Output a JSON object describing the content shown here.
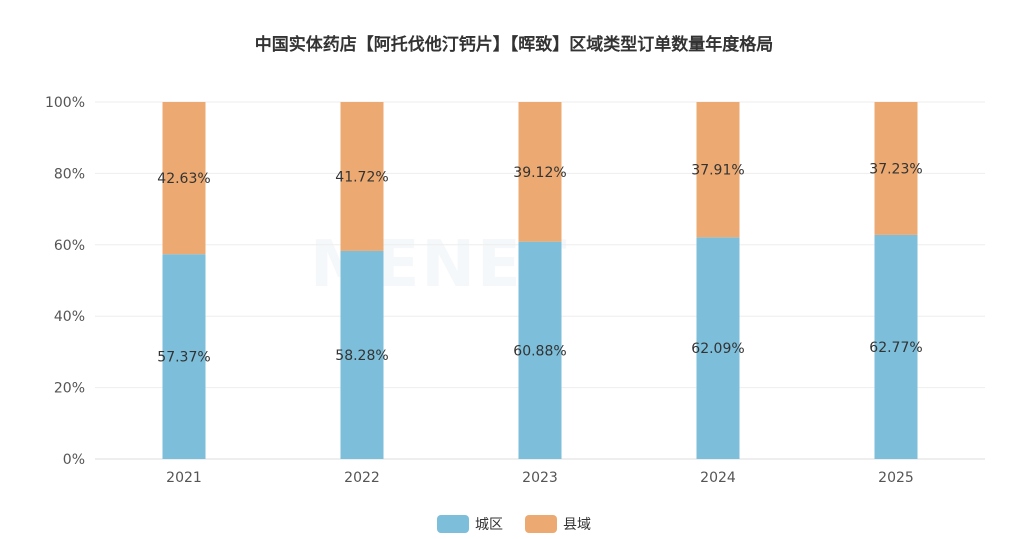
{
  "chart_data": {
    "type": "bar",
    "stacked": true,
    "title": "中国实体药店【阿托伐他汀钙片】【晖致】区域类型订单数量年度格局",
    "categories": [
      "2021",
      "2022",
      "2023",
      "2024",
      "2025"
    ],
    "series": [
      {
        "name": "城区",
        "color": "#7dbeda",
        "values": [
          57.37,
          58.28,
          60.88,
          62.09,
          62.77
        ],
        "labels": [
          "57.37%",
          "58.28%",
          "60.88%",
          "62.09%",
          "62.77%"
        ]
      },
      {
        "name": "县域",
        "color": "#ecaa72",
        "values": [
          42.63,
          41.72,
          39.12,
          37.91,
          37.23
        ],
        "labels": [
          "42.63%",
          "41.72%",
          "39.12%",
          "37.91%",
          "37.23%"
        ]
      }
    ],
    "yticks": [
      "0%",
      "20%",
      "40%",
      "60%",
      "80%",
      "100%"
    ],
    "ylim": [
      0,
      100
    ],
    "grid": true,
    "legend_position": "bottom"
  },
  "watermark": "MENET"
}
